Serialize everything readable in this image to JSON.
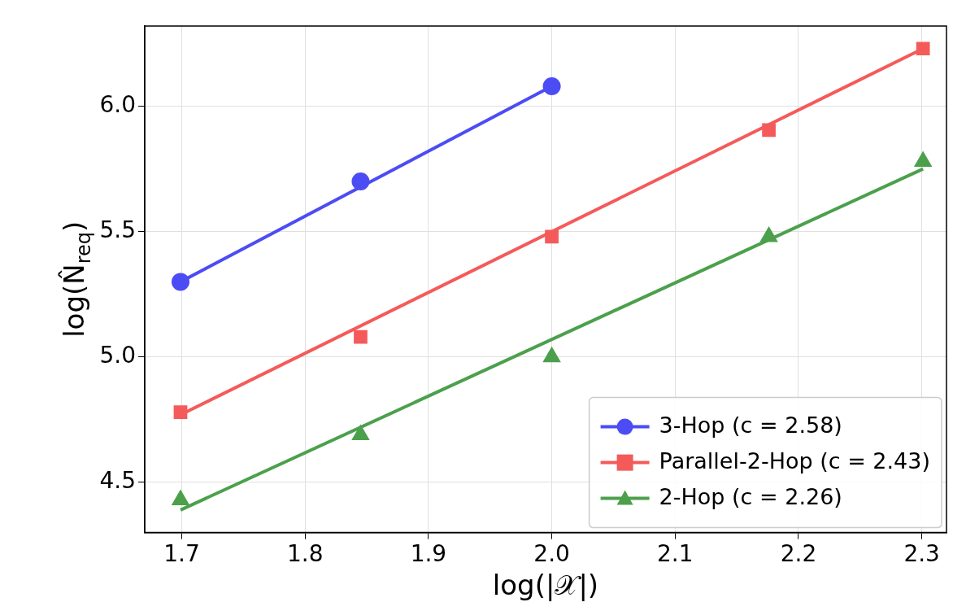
{
  "chart_data": {
    "type": "scatter",
    "xlabel": "log(|𝒳|)",
    "ylabel": "log(N̂$_{req}$)",
    "series": [
      {
        "name": "3-Hop (c = 2.58)",
        "type": "scatter",
        "color": "#4c4cf5",
        "marker": "circle",
        "x": [
          1.699,
          1.845,
          2.0
        ],
        "values": [
          5.3,
          5.7,
          6.08
        ]
      },
      {
        "name": "Parallel-2-Hop (c = 2.43)",
        "type": "scatter",
        "color": "#f55a5a",
        "marker": "square",
        "x": [
          1.699,
          1.845,
          2.0,
          2.176,
          2.301
        ],
        "values": [
          4.78,
          5.08,
          5.48,
          5.905,
          6.23
        ]
      },
      {
        "name": "2-Hop (c = 2.26)",
        "type": "scatter",
        "color": "#4ca04c",
        "marker": "triangle",
        "x": [
          1.699,
          1.845,
          2.0,
          2.176,
          2.301
        ],
        "values": [
          4.43,
          4.69,
          5.0,
          5.48,
          5.78
        ]
      },
      {
        "type": "line",
        "color": "#4c4cf5",
        "marker": "none",
        "x": [
          1.699,
          2.0
        ],
        "values": [
          5.3,
          6.08
        ]
      },
      {
        "type": "line",
        "color": "#f55a5a",
        "marker": "none",
        "x": [
          1.699,
          2.301
        ],
        "values": [
          4.77,
          6.23
        ]
      },
      {
        "type": "line",
        "color": "#4ca04c",
        "marker": "none",
        "x": [
          1.699,
          2.301
        ],
        "values": [
          4.39,
          5.75
        ]
      }
    ],
    "xlim": [
      1.67,
      2.32
    ],
    "ylim": [
      4.3,
      6.32
    ],
    "xticks": [
      {
        "value": 1.7,
        "label": "1.7"
      },
      {
        "value": 1.8,
        "label": "1.8"
      },
      {
        "value": 1.9,
        "label": "1.9"
      },
      {
        "value": 2.0,
        "label": "2.0"
      },
      {
        "value": 2.1,
        "label": "2.1"
      },
      {
        "value": 2.2,
        "label": "2.2"
      },
      {
        "value": 2.3,
        "label": "2.3"
      }
    ],
    "yticks": [
      {
        "value": 4.5,
        "label": "4.5"
      },
      {
        "value": 5.0,
        "label": "5.0"
      },
      {
        "value": 5.5,
        "label": "5.5"
      },
      {
        "value": 6.0,
        "label": "6.0"
      }
    ],
    "grid": true,
    "legend": "bottom right"
  }
}
